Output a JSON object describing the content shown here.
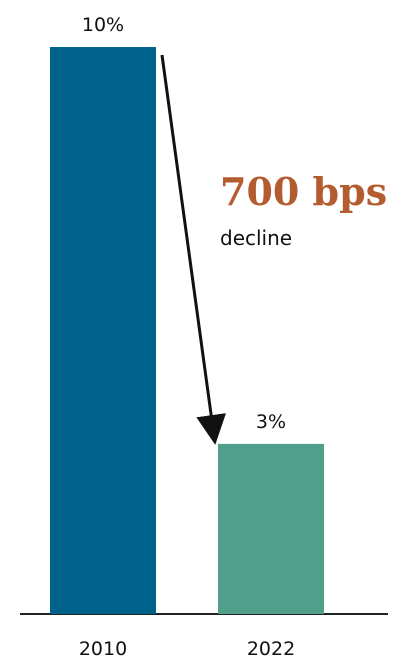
{
  "chart_data": {
    "type": "bar",
    "categories": [
      "2010",
      "2022"
    ],
    "values": [
      10,
      3
    ],
    "value_labels": [
      "10%",
      "3%"
    ],
    "ylim": [
      0,
      10
    ],
    "title": "",
    "xlabel": "",
    "ylabel": "",
    "grid": false,
    "legend": "none",
    "annotation": {
      "main": "700 bps",
      "sub": "decline"
    }
  },
  "colors": {
    "bar_2010": "#00628b",
    "bar_2022": "#4f9f8b",
    "annotation": "#b35c2f",
    "axis": "#222222",
    "arrow": "#111111"
  }
}
